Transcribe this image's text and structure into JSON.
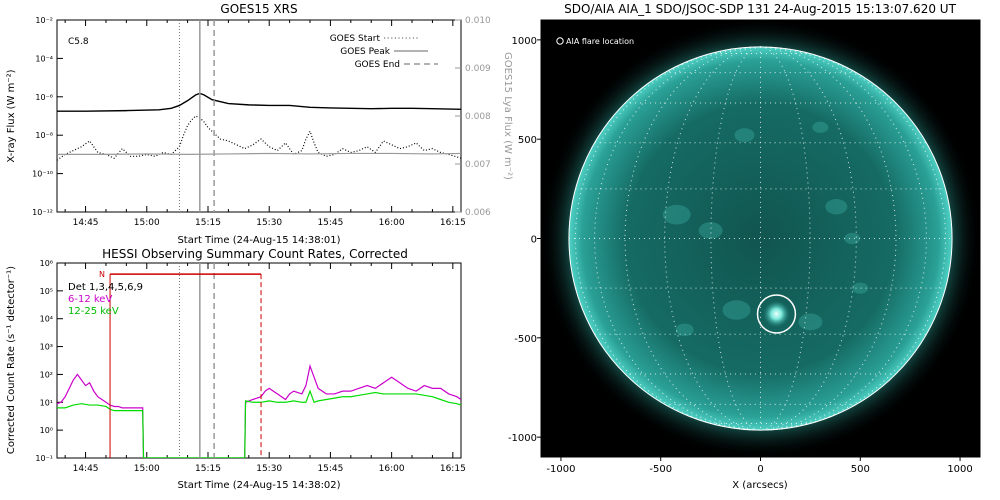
{
  "colors": {
    "axis": "#000000",
    "goes_long": "#000000",
    "goes_short": "#000000",
    "lya": "#999999",
    "right_axis": "#999999",
    "peak_line": "#999999",
    "hessi_det": "#cc0000",
    "hessi_6_12": "#cc00cc",
    "hessi_12_25": "#00dd00",
    "sun_disk": "#1f8c86",
    "sun_bright": "#9ffff0",
    "sky": "#000000"
  },
  "chart_data": [
    {
      "type": "line",
      "title": "GOES15 XRS",
      "corner_label": "C5.8",
      "xlabel": "Start Time (24-Aug-15 14:38:01)",
      "ylabel": "X-ray Flux (W m⁻²)",
      "ylabel2": "GOES15 Lya Flux (W m⁻²)",
      "x_ticks": [
        "14:45",
        "15:00",
        "15:15",
        "15:30",
        "15:45",
        "16:00",
        "16:15"
      ],
      "x_tick_minutes": [
        45,
        60,
        75,
        90,
        105,
        120,
        135
      ],
      "xlim_minutes": [
        38,
        137
      ],
      "y_scale": "log",
      "ylim_exp": [
        -12,
        -2
      ],
      "y_ticks": [
        "10⁻¹²",
        "10⁻¹⁰",
        "10⁻⁸",
        "10⁻⁶",
        "10⁻⁴",
        "10⁻²"
      ],
      "y_tick_exps": [
        -12,
        -10,
        -8,
        -6,
        -4,
        -2
      ],
      "y2lim": [
        0.006,
        0.01
      ],
      "y2_ticks": [
        "0.006",
        "0.007",
        "0.008",
        "0.009",
        "0.010"
      ],
      "y2_tick_values": [
        0.006,
        0.007,
        0.008,
        0.009,
        0.01
      ],
      "legend_position": "top-right",
      "legend": [
        {
          "label": "GOES Start",
          "style": "dotted"
        },
        {
          "label": "GOES Peak",
          "style": "solid"
        },
        {
          "label": "GOES End",
          "style": "dashed"
        }
      ],
      "events_minutes": {
        "start": 68,
        "peak": 73,
        "end": 76.5
      },
      "series": [
        {
          "key": "long",
          "axis": "left",
          "style": "solid",
          "x": [
            38,
            45,
            55,
            63,
            66,
            68,
            70,
            72,
            73,
            74,
            76,
            80,
            85,
            90,
            95,
            100,
            105,
            110,
            115,
            120,
            125,
            130,
            137
          ],
          "y_exp": [
            -6.75,
            -6.75,
            -6.72,
            -6.68,
            -6.6,
            -6.45,
            -6.2,
            -5.9,
            -5.82,
            -5.9,
            -6.15,
            -6.35,
            -6.42,
            -6.45,
            -6.45,
            -6.55,
            -6.58,
            -6.6,
            -6.62,
            -6.6,
            -6.6,
            -6.62,
            -6.65
          ]
        },
        {
          "key": "short",
          "axis": "left",
          "style": "dotted",
          "x": [
            38,
            40,
            42,
            44,
            46,
            48,
            50,
            52,
            54,
            56,
            58,
            60,
            62,
            64,
            66,
            68,
            69,
            70,
            71,
            72,
            73,
            74,
            75,
            76,
            77,
            78,
            80,
            82,
            84,
            86,
            88,
            90,
            92,
            94,
            96,
            98,
            99,
            100,
            101,
            102,
            104,
            106,
            108,
            110,
            112,
            114,
            116,
            118,
            120,
            122,
            124,
            126,
            128,
            130,
            132,
            134,
            137
          ],
          "y_exp": [
            -9.3,
            -9.0,
            -8.8,
            -8.6,
            -8.3,
            -8.9,
            -9.0,
            -9.2,
            -8.7,
            -9.1,
            -9.1,
            -9.0,
            -9.1,
            -8.9,
            -9.0,
            -8.6,
            -8.0,
            -7.5,
            -7.2,
            -7.0,
            -7.1,
            -7.3,
            -7.6,
            -7.8,
            -8.0,
            -8.2,
            -8.3,
            -8.5,
            -8.7,
            -8.5,
            -8.2,
            -8.6,
            -8.8,
            -8.4,
            -9.0,
            -8.8,
            -8.2,
            -7.8,
            -8.4,
            -8.9,
            -9.1,
            -9.0,
            -8.7,
            -8.9,
            -8.8,
            -8.6,
            -8.9,
            -8.3,
            -8.5,
            -8.7,
            -8.6,
            -8.4,
            -8.8,
            -8.7,
            -8.9,
            -9.0,
            -9.2
          ]
        },
        {
          "key": "lya",
          "axis": "right",
          "style": "solid",
          "x": [
            38,
            50,
            60,
            70,
            80,
            90,
            100,
            110,
            120,
            130,
            137
          ],
          "y": [
            0.0072,
            0.0072,
            0.00721,
            0.0072,
            0.00721,
            0.00722,
            0.00721,
            0.00722,
            0.00722,
            0.00721,
            0.00722
          ]
        }
      ]
    },
    {
      "type": "line",
      "title": "HESSI Observing Summary Count Rates, Corrected",
      "xlabel": "Start Time (24-Aug-15 14:38:02)",
      "ylabel": "Corrected Count Rate (s⁻¹ detector⁻¹)",
      "x_ticks": [
        "14:45",
        "15:00",
        "15:15",
        "15:30",
        "15:45",
        "16:00",
        "16:15"
      ],
      "x_tick_minutes": [
        45,
        60,
        75,
        90,
        105,
        120,
        135
      ],
      "xlim_minutes": [
        38,
        137
      ],
      "y_scale": "log",
      "ylim_exp": [
        -1,
        6
      ],
      "y_ticks": [
        "10⁻¹",
        "10⁰",
        "10¹",
        "10²",
        "10³",
        "10⁴",
        "10⁵",
        "10⁶"
      ],
      "y_tick_exps": [
        -1,
        0,
        1,
        2,
        3,
        4,
        5,
        6
      ],
      "legend_position": "top-left",
      "flag_label": "N",
      "flag_minutes": [
        51,
        88
      ],
      "events_minutes": {
        "start": 68,
        "peak": 73,
        "end": 76.5
      },
      "legend": [
        {
          "label": "Det 1,3,4,5,6,9",
          "color_key": "axis"
        },
        {
          "label": "6-12 keV",
          "color_key": "hessi_6_12"
        },
        {
          "label": "12-25 keV",
          "color_key": "hessi_12_25"
        }
      ],
      "series": [
        {
          "key": "low",
          "name": "6-12 keV",
          "color_key": "hessi_6_12",
          "x": [
            38,
            39,
            40,
            41,
            42,
            43,
            44,
            45,
            46,
            47,
            48,
            49,
            50,
            51,
            52,
            53,
            54,
            55,
            56,
            57,
            58,
            59,
            59.2,
            84,
            84.2,
            86,
            88,
            89,
            90,
            92,
            94,
            95,
            96,
            98,
            99,
            100,
            101,
            102,
            103,
            104,
            106,
            108,
            110,
            112,
            114,
            116,
            118,
            120,
            122,
            124,
            126,
            128,
            130,
            132,
            134,
            136,
            137
          ],
          "y_exp": [
            0.95,
            1.0,
            1.2,
            1.5,
            1.8,
            2.0,
            1.8,
            1.6,
            1.7,
            1.4,
            1.2,
            1.1,
            1.0,
            0.9,
            0.85,
            0.85,
            0.8,
            0.8,
            0.8,
            0.8,
            0.8,
            0.8,
            -1,
            -1,
            1.0,
            1.1,
            1.2,
            1.4,
            1.5,
            1.3,
            1.1,
            1.3,
            1.4,
            1.3,
            1.6,
            2.3,
            1.9,
            1.5,
            1.4,
            1.3,
            1.3,
            1.4,
            1.4,
            1.5,
            1.6,
            1.5,
            1.7,
            1.9,
            1.7,
            1.5,
            1.4,
            1.6,
            1.5,
            1.5,
            1.3,
            1.2,
            1.1
          ]
        },
        {
          "key": "high",
          "name": "12-25 keV",
          "color_key": "hessi_12_25",
          "x": [
            38,
            40,
            42,
            44,
            46,
            48,
            50,
            51,
            52,
            54,
            56,
            58,
            59,
            59.2,
            84,
            84.2,
            86,
            88,
            90,
            92,
            94,
            96,
            98,
            99,
            100,
            101,
            102,
            104,
            106,
            108,
            110,
            112,
            114,
            116,
            118,
            120,
            122,
            124,
            126,
            128,
            130,
            132,
            134,
            136,
            137
          ],
          "y_exp": [
            0.8,
            0.8,
            0.9,
            0.95,
            0.9,
            0.9,
            0.85,
            0.75,
            0.7,
            0.7,
            0.7,
            0.7,
            0.7,
            -1,
            -1,
            1.05,
            1.0,
            1.0,
            1.05,
            1.0,
            1.0,
            1.05,
            1.0,
            1.0,
            1.4,
            1.0,
            1.05,
            1.1,
            1.15,
            1.2,
            1.2,
            1.25,
            1.3,
            1.35,
            1.3,
            1.3,
            1.3,
            1.3,
            1.3,
            1.25,
            1.2,
            1.1,
            1.0,
            0.95,
            0.9
          ]
        },
        {
          "key": "gap_high",
          "name": "",
          "color_key": "hessi_12_25",
          "x": [
            59.2,
            84
          ],
          "y_exp": [
            -1,
            -1
          ]
        }
      ]
    },
    {
      "type": "scatter",
      "title": "SDO/AIA AIA_1 SDO/JSOC-SDP 131 24-Aug-2015 15:13:07.620 UT",
      "annotation": "AIA flare location",
      "xlabel": "X (arcsecs)",
      "ylabel": "",
      "xlim": [
        -1100,
        1100
      ],
      "ylim": [
        -1100,
        1100
      ],
      "x_ticks": [
        "-1000",
        "-500",
        "0",
        "500",
        "1000"
      ],
      "x_tick_values": [
        -1000,
        -500,
        0,
        500,
        1000
      ],
      "y_ticks": [
        "-1000",
        "-500",
        "0",
        "500",
        "1000"
      ],
      "y_tick_values": [
        -1000,
        -500,
        0,
        500,
        1000
      ],
      "solar_radius_arcsec": 960,
      "flare_location": {
        "x": 80,
        "y": -380
      },
      "flare_circle_radius_arcsec": 95,
      "grid": true
    }
  ]
}
